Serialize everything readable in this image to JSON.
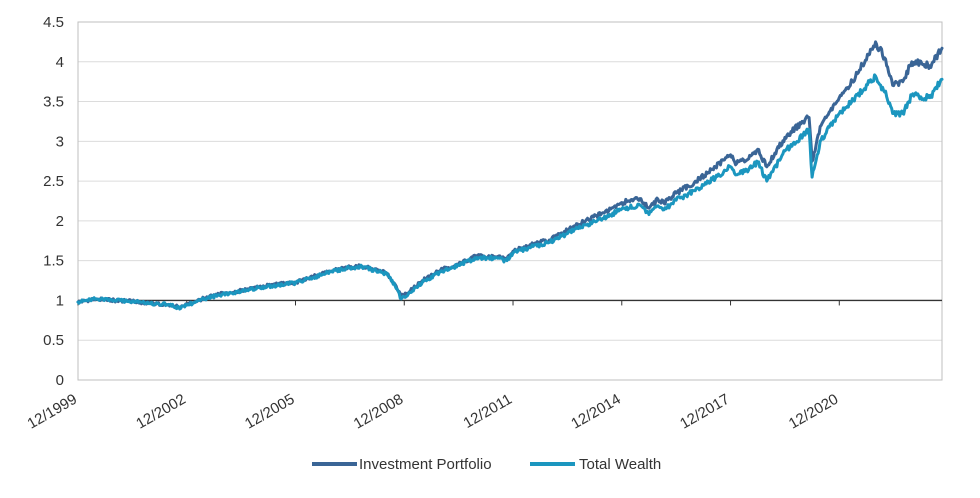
{
  "chart_data": {
    "type": "line",
    "title": "",
    "xlabel": "",
    "ylabel": "",
    "ylim": [
      0,
      4.5
    ],
    "yticks": [
      "0",
      "0.5",
      "1",
      "1.5",
      "2",
      "2.5",
      "3",
      "3.5",
      "4",
      "4.5"
    ],
    "xlim": [
      "12/1999",
      "10/2023"
    ],
    "xticks": [
      "12/1999",
      "12/2002",
      "12/2005",
      "12/2008",
      "12/2011",
      "12/2014",
      "12/2017",
      "12/2020"
    ],
    "grid": "horizontal",
    "legend": "bottom-center",
    "colors": {
      "Investment Portfolio": "#3a6596",
      "Total Wealth": "#1b96bf"
    },
    "series": [
      {
        "name": "Investment Portfolio",
        "color": "#3a6596",
        "x": [
          "12/1999",
          "06/2000",
          "12/2000",
          "06/2001",
          "12/2001",
          "06/2002",
          "10/2002",
          "12/2002",
          "06/2003",
          "12/2003",
          "06/2004",
          "12/2004",
          "06/2005",
          "12/2005",
          "06/2006",
          "12/2006",
          "06/2007",
          "10/2007",
          "06/2008",
          "09/2008",
          "11/2008",
          "02/2009",
          "06/2009",
          "12/2009",
          "06/2010",
          "12/2010",
          "06/2011",
          "10/2011",
          "12/2011",
          "06/2012",
          "12/2012",
          "06/2013",
          "12/2013",
          "06/2014",
          "12/2014",
          "06/2015",
          "09/2015",
          "12/2015",
          "02/2016",
          "06/2016",
          "12/2016",
          "06/2017",
          "12/2017",
          "02/2018",
          "06/2018",
          "09/2018",
          "12/2018",
          "06/2019",
          "12/2019",
          "02/2020",
          "03/2020",
          "06/2020",
          "12/2020",
          "06/2021",
          "12/2021",
          "03/2022",
          "06/2022",
          "09/2022",
          "12/2022",
          "06/2023",
          "10/2023"
        ],
        "values": [
          0.98,
          1.02,
          1.0,
          0.99,
          0.96,
          0.95,
          0.91,
          0.95,
          1.03,
          1.09,
          1.12,
          1.17,
          1.2,
          1.23,
          1.3,
          1.37,
          1.42,
          1.43,
          1.35,
          1.2,
          1.05,
          1.12,
          1.25,
          1.38,
          1.46,
          1.56,
          1.55,
          1.53,
          1.62,
          1.7,
          1.76,
          1.88,
          2.0,
          2.1,
          2.23,
          2.28,
          2.16,
          2.27,
          2.22,
          2.35,
          2.48,
          2.65,
          2.83,
          2.72,
          2.78,
          2.9,
          2.68,
          3.05,
          3.25,
          3.3,
          2.75,
          3.2,
          3.55,
          3.85,
          4.25,
          4.05,
          3.7,
          3.75,
          4.0,
          3.95,
          4.17
        ]
      },
      {
        "name": "Total Wealth",
        "color": "#1b96bf",
        "x": [
          "12/1999",
          "06/2000",
          "12/2000",
          "06/2001",
          "12/2001",
          "06/2002",
          "10/2002",
          "12/2002",
          "06/2003",
          "12/2003",
          "06/2004",
          "12/2004",
          "06/2005",
          "12/2005",
          "06/2006",
          "12/2006",
          "06/2007",
          "10/2007",
          "06/2008",
          "09/2008",
          "11/2008",
          "02/2009",
          "06/2009",
          "12/2009",
          "06/2010",
          "12/2010",
          "06/2011",
          "10/2011",
          "12/2011",
          "06/2012",
          "12/2012",
          "06/2013",
          "12/2013",
          "06/2014",
          "12/2014",
          "06/2015",
          "09/2015",
          "12/2015",
          "02/2016",
          "06/2016",
          "12/2016",
          "06/2017",
          "12/2017",
          "02/2018",
          "06/2018",
          "09/2018",
          "12/2018",
          "06/2019",
          "12/2019",
          "02/2020",
          "03/2020",
          "06/2020",
          "12/2020",
          "06/2021",
          "12/2021",
          "03/2022",
          "06/2022",
          "09/2022",
          "12/2022",
          "06/2023",
          "10/2023"
        ],
        "values": [
          0.98,
          1.02,
          1.0,
          0.99,
          0.96,
          0.95,
          0.9,
          0.94,
          1.02,
          1.08,
          1.11,
          1.16,
          1.19,
          1.22,
          1.29,
          1.36,
          1.41,
          1.42,
          1.34,
          1.18,
          1.02,
          1.1,
          1.23,
          1.36,
          1.44,
          1.54,
          1.53,
          1.5,
          1.6,
          1.67,
          1.73,
          1.84,
          1.95,
          2.03,
          2.15,
          2.2,
          2.08,
          2.19,
          2.14,
          2.26,
          2.38,
          2.52,
          2.68,
          2.58,
          2.64,
          2.74,
          2.5,
          2.88,
          3.08,
          3.15,
          2.55,
          3.02,
          3.35,
          3.58,
          3.82,
          3.62,
          3.35,
          3.35,
          3.58,
          3.55,
          3.78
        ]
      }
    ]
  }
}
